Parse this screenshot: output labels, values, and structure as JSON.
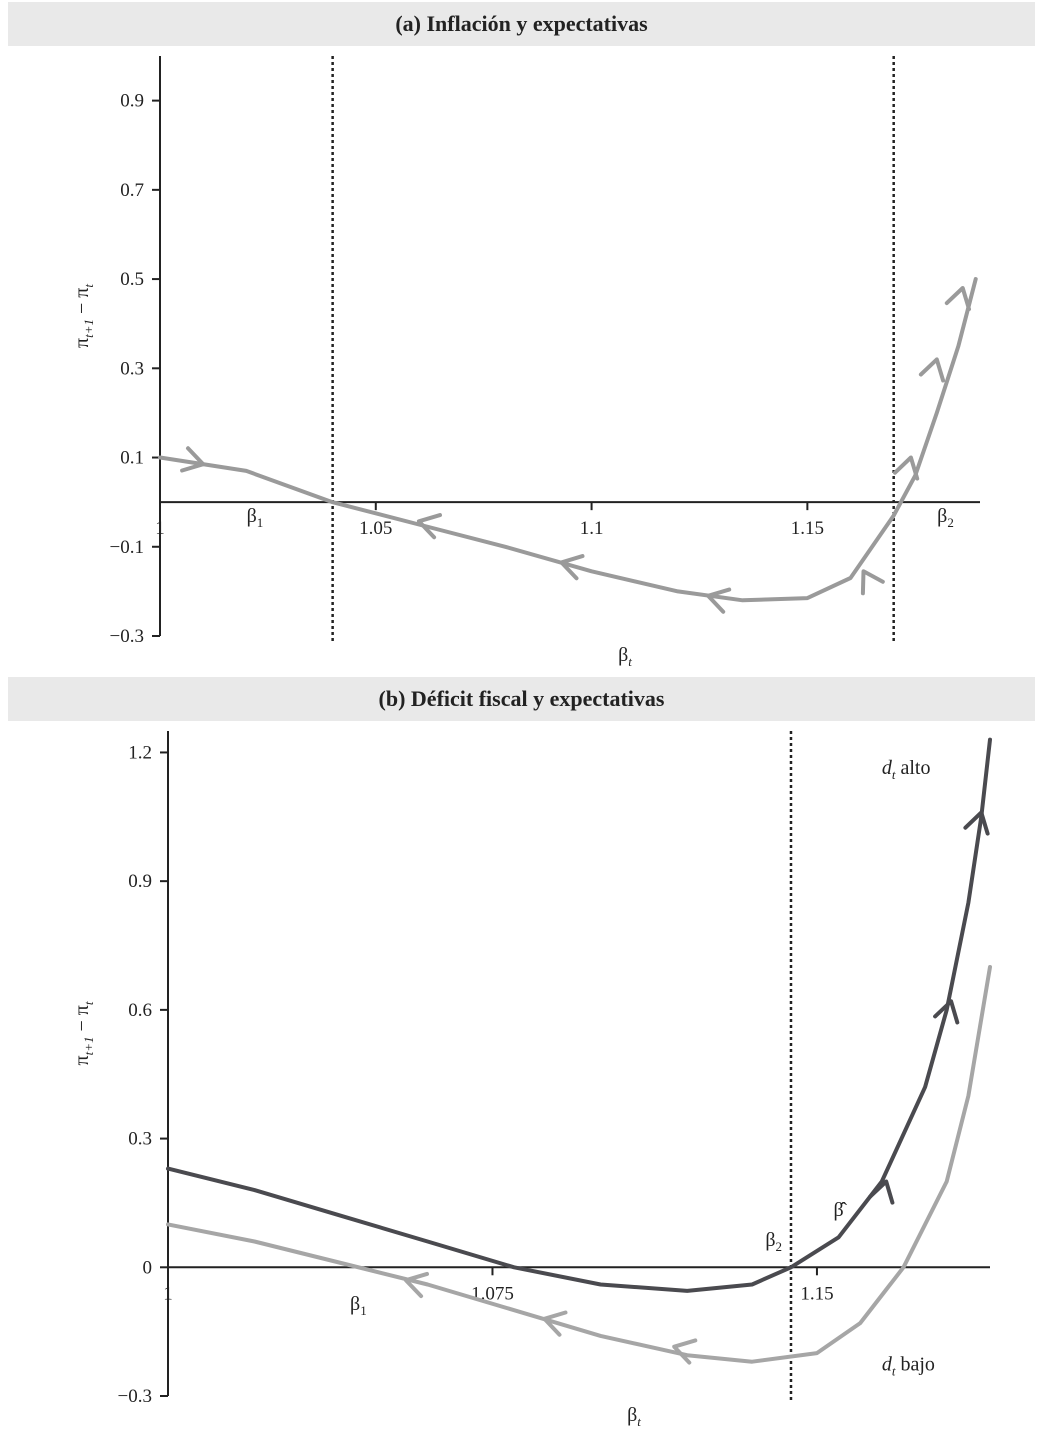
{
  "panels": [
    {
      "title": "(a) Inflación y expectativas",
      "chart_data": {
        "type": "line",
        "title": "(a) Inflación y expectativas",
        "xlabel": "βt",
        "ylabel": "πt+1 − πt",
        "xlim": [
          1.0,
          1.19
        ],
        "ylim": [
          -0.3,
          1.0
        ],
        "x_ticks": [
          {
            "value": 1.0,
            "label": "1"
          },
          {
            "value": 1.05,
            "label": "1.05"
          },
          {
            "value": 1.1,
            "label": "1.1"
          },
          {
            "value": 1.15,
            "label": "1.15"
          }
        ],
        "y_ticks": [
          {
            "value": 0.9,
            "label": "0.9"
          },
          {
            "value": 0.7,
            "label": "0.7"
          },
          {
            "value": 0.5,
            "label": "0.5"
          },
          {
            "value": 0.3,
            "label": "0.3"
          },
          {
            "value": 0.1,
            "label": "0.1"
          },
          {
            "value": -0.1,
            "label": "−0.1"
          },
          {
            "value": -0.3,
            "label": "−0.3"
          }
        ],
        "vlines": [
          1.04,
          1.17
        ],
        "point_labels": [
          {
            "text": "β",
            "sub": "1",
            "x": 1.022,
            "y": -0.045
          },
          {
            "text": "β",
            "sub": "2",
            "x": 1.182,
            "y": -0.045
          }
        ],
        "series": [
          {
            "color": "#9a9a9a",
            "points": [
              [
                1.0,
                0.1
              ],
              [
                1.02,
                0.07
              ],
              [
                1.04,
                0.0
              ],
              [
                1.06,
                -0.05
              ],
              [
                1.08,
                -0.1
              ],
              [
                1.1,
                -0.155
              ],
              [
                1.12,
                -0.2
              ],
              [
                1.135,
                -0.22
              ],
              [
                1.15,
                -0.215
              ],
              [
                1.16,
                -0.17
              ],
              [
                1.17,
                -0.03
              ],
              [
                1.175,
                0.06
              ],
              [
                1.18,
                0.2
              ],
              [
                1.185,
                0.35
              ],
              [
                1.189,
                0.5
              ]
            ],
            "arrows": [
              [
                1.01,
                0.085,
                "right"
              ],
              [
                1.06,
                -0.043,
                "left"
              ],
              [
                1.093,
                -0.135,
                "left"
              ],
              [
                1.127,
                -0.21,
                "left"
              ],
              [
                1.163,
                -0.155,
                "up-left"
              ],
              [
                1.174,
                0.1,
                "up"
              ],
              [
                1.18,
                0.32,
                "up"
              ],
              [
                1.186,
                0.48,
                "up"
              ]
            ]
          }
        ]
      }
    },
    {
      "title": "(b) Déficit fiscal y expectativas",
      "chart_data": {
        "type": "line",
        "title": "(b) Déficit fiscal y expectativas",
        "xlabel": "βt",
        "ylabel": "πt+1 − πt",
        "xlim": [
          1.0,
          1.19
        ],
        "ylim": [
          -0.3,
          1.25
        ],
        "x_ticks": [
          {
            "value": 1.0,
            "label": "1"
          },
          {
            "value": 1.075,
            "label": "1.075"
          },
          {
            "value": 1.15,
            "label": "1.15"
          }
        ],
        "y_ticks": [
          {
            "value": 1.2,
            "label": "1.2"
          },
          {
            "value": 0.9,
            "label": "0.9"
          },
          {
            "value": 0.6,
            "label": "0.6"
          },
          {
            "value": 0.3,
            "label": "0.3"
          },
          {
            "value": 0.0,
            "label": "0"
          },
          {
            "value": -0.3,
            "label": "−0.3"
          }
        ],
        "vlines": [
          1.144
        ],
        "point_labels": [
          {
            "text": "β",
            "sub": "1",
            "x": 1.044,
            "y": -0.1
          },
          {
            "text": "β",
            "sub": "2",
            "x": 1.14,
            "y": 0.05
          },
          {
            "text": "β̂",
            "sub": "",
            "x": 1.155,
            "y": 0.12
          }
        ],
        "series": [
          {
            "name": "dt alto",
            "color": "#4a4a4f",
            "points": [
              [
                1.0,
                0.23
              ],
              [
                1.02,
                0.18
              ],
              [
                1.04,
                0.12
              ],
              [
                1.06,
                0.06
              ],
              [
                1.08,
                0.0
              ],
              [
                1.1,
                -0.04
              ],
              [
                1.12,
                -0.055
              ],
              [
                1.135,
                -0.04
              ],
              [
                1.144,
                0.0
              ],
              [
                1.155,
                0.07
              ],
              [
                1.165,
                0.2
              ],
              [
                1.175,
                0.42
              ],
              [
                1.18,
                0.6
              ],
              [
                1.185,
                0.85
              ],
              [
                1.188,
                1.05
              ],
              [
                1.19,
                1.23
              ]
            ],
            "arrows": [
              [
                1.166,
                0.2,
                "up"
              ],
              [
                1.181,
                0.62,
                "up"
              ],
              [
                1.188,
                1.06,
                "up"
              ]
            ]
          },
          {
            "name": "dt bajo",
            "color": "#a6a6a6",
            "points": [
              [
                1.0,
                0.1
              ],
              [
                1.02,
                0.06
              ],
              [
                1.04,
                0.01
              ],
              [
                1.06,
                -0.04
              ],
              [
                1.08,
                -0.1
              ],
              [
                1.1,
                -0.16
              ],
              [
                1.12,
                -0.205
              ],
              [
                1.135,
                -0.22
              ],
              [
                1.15,
                -0.2
              ],
              [
                1.16,
                -0.13
              ],
              [
                1.17,
                0.0
              ],
              [
                1.18,
                0.2
              ],
              [
                1.185,
                0.4
              ],
              [
                1.19,
                0.7
              ]
            ],
            "arrows": [
              [
                1.055,
                -0.03,
                "left"
              ],
              [
                1.087,
                -0.12,
                "left"
              ],
              [
                1.117,
                -0.185,
                "left"
              ]
            ]
          }
        ],
        "series_labels": [
          {
            "text": "d",
            "sub": "t",
            "rest": " alto",
            "x": 1.165,
            "y": 1.15
          },
          {
            "text": "d",
            "sub": "t",
            "rest": " bajo",
            "x": 1.165,
            "y": -0.24
          }
        ]
      }
    }
  ]
}
